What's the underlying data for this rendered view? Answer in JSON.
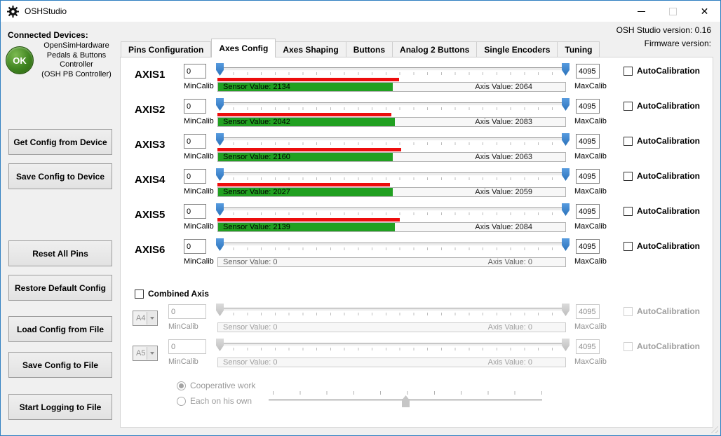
{
  "window": {
    "title": "OSHStudio",
    "version_line": "OSH Studio version: 0.16",
    "firmware_line": "Firmware version:"
  },
  "device_panel": {
    "heading": "Connected Devices:",
    "status": "OK",
    "name_lines": [
      "OpenSimHardware",
      "Pedals & Buttons",
      "Controller",
      "(OSH PB Controller)"
    ],
    "buttons": [
      "Get Config from Device",
      "Save Config to Device",
      "Reset All Pins",
      "Restore Default Config",
      "Load Config from File",
      "Save Config to File",
      "Start Logging to File"
    ]
  },
  "tabs": [
    {
      "label": "Pins Configuration",
      "active": false
    },
    {
      "label": "Axes Config",
      "active": true
    },
    {
      "label": "Axes Shaping",
      "active": false
    },
    {
      "label": "Buttons",
      "active": false
    },
    {
      "label": "Analog 2 Buttons",
      "active": false
    },
    {
      "label": "Single Encoders",
      "active": false
    },
    {
      "label": "Tuning",
      "active": false
    }
  ],
  "axes_config": {
    "range_max": 4095,
    "labels": {
      "min_calib": "MinCalib",
      "max_calib": "MaxCalib",
      "auto_calibration": "AutoCalibration"
    },
    "rows": [
      {
        "name": "AXIS1",
        "min_calib": "0",
        "max_calib": "4095",
        "sensor_value": 2134,
        "axis_value": 2064,
        "sensor_label": "Sensor Value: 2134",
        "axis_label": "Axis Value: 2064"
      },
      {
        "name": "AXIS2",
        "min_calib": "0",
        "max_calib": "4095",
        "sensor_value": 2042,
        "axis_value": 2083,
        "sensor_label": "Sensor Value: 2042",
        "axis_label": "Axis Value: 2083"
      },
      {
        "name": "AXIS3",
        "min_calib": "0",
        "max_calib": "4095",
        "sensor_value": 2160,
        "axis_value": 2063,
        "sensor_label": "Sensor Value: 2160",
        "axis_label": "Axis Value: 2063"
      },
      {
        "name": "AXIS4",
        "min_calib": "0",
        "max_calib": "4095",
        "sensor_value": 2027,
        "axis_value": 2059,
        "sensor_label": "Sensor Value: 2027",
        "axis_label": "Axis Value: 2059"
      },
      {
        "name": "AXIS5",
        "min_calib": "0",
        "max_calib": "4095",
        "sensor_value": 2139,
        "axis_value": 2084,
        "sensor_label": "Sensor Value: 2139",
        "axis_label": "Axis Value: 2084"
      },
      {
        "name": "AXIS6",
        "min_calib": "0",
        "max_calib": "4095",
        "sensor_value": 0,
        "axis_value": 0,
        "sensor_label": "Sensor Value: 0",
        "axis_label": "Axis Value: 0"
      }
    ],
    "combined": {
      "checkbox_label": "Combined Axis",
      "rows": [
        {
          "pin": "A4",
          "min_calib": "0",
          "max_calib": "4095",
          "sensor_value": 0,
          "axis_value": 0,
          "sensor_label": "Sensor Value: 0",
          "axis_label": "Axis Value: 0"
        },
        {
          "pin": "A5",
          "min_calib": "0",
          "max_calib": "4095",
          "sensor_value": 0,
          "axis_value": 0,
          "sensor_label": "Sensor Value: 0",
          "axis_label": "Axis Value: 0"
        }
      ],
      "radio_options": [
        "Cooperative work",
        "Each on his own"
      ],
      "radio_selected": "Cooperative work"
    }
  },
  "colors": {
    "accent_blue": "#2f7fc1",
    "thumb_blue": "#3a87d0",
    "sensor_red": "#ec0d0d",
    "axis_green": "#21a021",
    "status_green": "#3f8420"
  }
}
